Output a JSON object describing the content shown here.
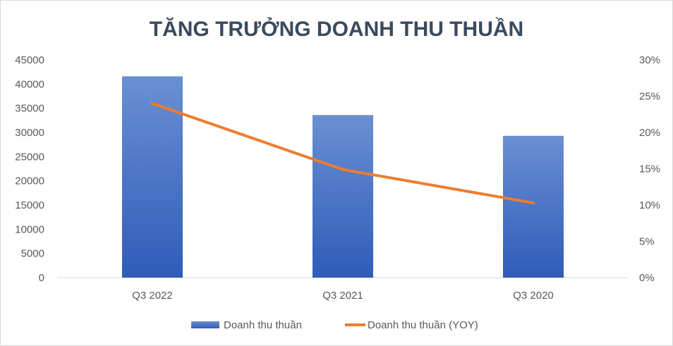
{
  "chart_data": {
    "type": "bar",
    "title": "TĂNG TRƯỞNG DOANH THU THUẦN",
    "categories": [
      "Q3 2022",
      "Q3 2021",
      "Q3 2020"
    ],
    "series": [
      {
        "name": "Doanh thu thuần",
        "type": "bar",
        "axis": "left",
        "values": [
          41600,
          33600,
          29300
        ],
        "color": "#4472c4"
      },
      {
        "name": "Doanh thu thuần (YOY)",
        "type": "line",
        "axis": "right",
        "values": [
          0.24,
          0.149,
          0.103
        ],
        "color": "#ed7d31"
      }
    ],
    "y_left": {
      "range": [
        0,
        45000
      ],
      "ticks": [
        "0",
        "5000",
        "10000",
        "15000",
        "20000",
        "25000",
        "30000",
        "35000",
        "40000",
        "45000"
      ]
    },
    "y_right": {
      "range": [
        0,
        0.3
      ],
      "ticks": [
        "0%",
        "5%",
        "10%",
        "15%",
        "20%",
        "25%",
        "30%"
      ]
    },
    "grid": false,
    "legend": "bottom-center"
  }
}
